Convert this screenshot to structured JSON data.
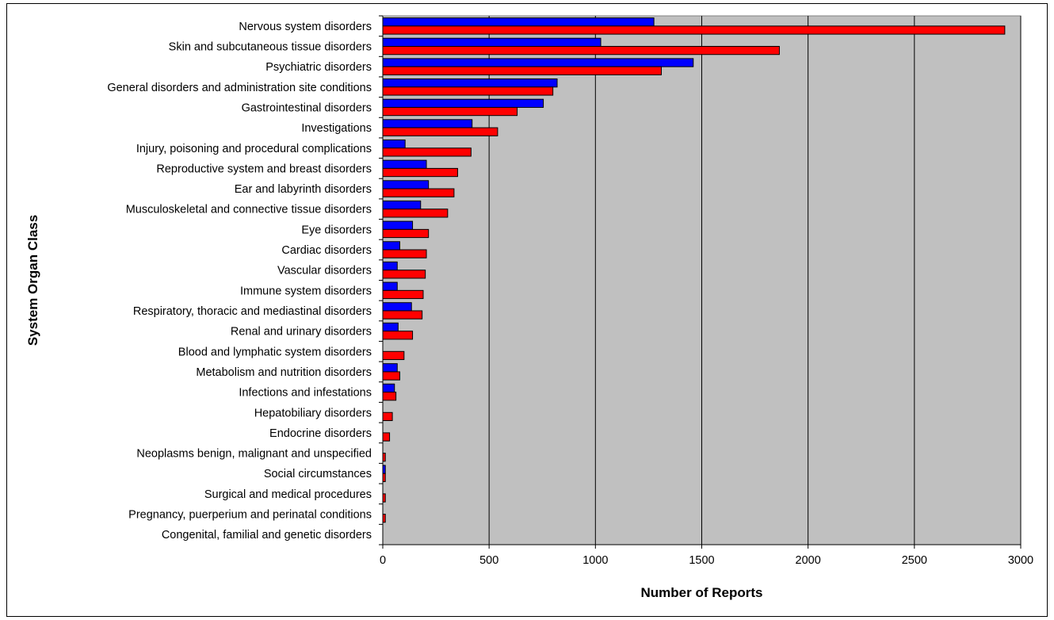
{
  "chart_data": {
    "type": "bar",
    "orientation": "horizontal",
    "xlabel": "Number of Reports",
    "ylabel": "System Organ Class",
    "xlim": [
      0,
      3000
    ],
    "xticks": [
      0,
      500,
      1000,
      1500,
      2000,
      2500,
      3000
    ],
    "grid": true,
    "legend": "none",
    "plot_background": "#c0c0c0",
    "categories": [
      "Nervous system disorders",
      "Skin and subcutaneous tissue disorders",
      "Psychiatric disorders",
      "General disorders and administration site conditions",
      "Gastrointestinal disorders",
      "Investigations",
      "Injury, poisoning and procedural complications",
      "Reproductive system and breast disorders",
      "Ear and labyrinth disorders",
      "Musculoskeletal and connective tissue disorders",
      "Eye disorders",
      "Cardiac disorders",
      "Vascular disorders",
      "Immune system disorders",
      "Respiratory, thoracic and mediastinal disorders",
      "Renal and urinary disorders",
      "Blood and lymphatic system disorders",
      "Metabolism and nutrition disorders",
      "Infections and infestations",
      "Hepatobiliary disorders",
      "Endocrine disorders",
      "Neoplasms benign, malignant and unspecified",
      "Social circumstances",
      "Surgical and medical procedures",
      "Pregnancy, puerperium and perinatal conditions",
      "Congenital, familial and genetic disorders"
    ],
    "series": [
      {
        "color": "#0000ff",
        "values": [
          1275,
          1025,
          1460,
          820,
          755,
          420,
          105,
          205,
          215,
          178,
          140,
          80,
          68,
          68,
          135,
          72,
          0,
          68,
          55,
          0,
          0,
          0,
          12,
          0,
          0,
          0
        ]
      },
      {
        "color": "#ff0000",
        "values": [
          2925,
          1865,
          1310,
          800,
          632,
          540,
          415,
          352,
          335,
          305,
          215,
          205,
          200,
          190,
          185,
          140,
          100,
          80,
          62,
          45,
          32,
          12,
          12,
          12,
          12,
          0
        ]
      }
    ]
  }
}
